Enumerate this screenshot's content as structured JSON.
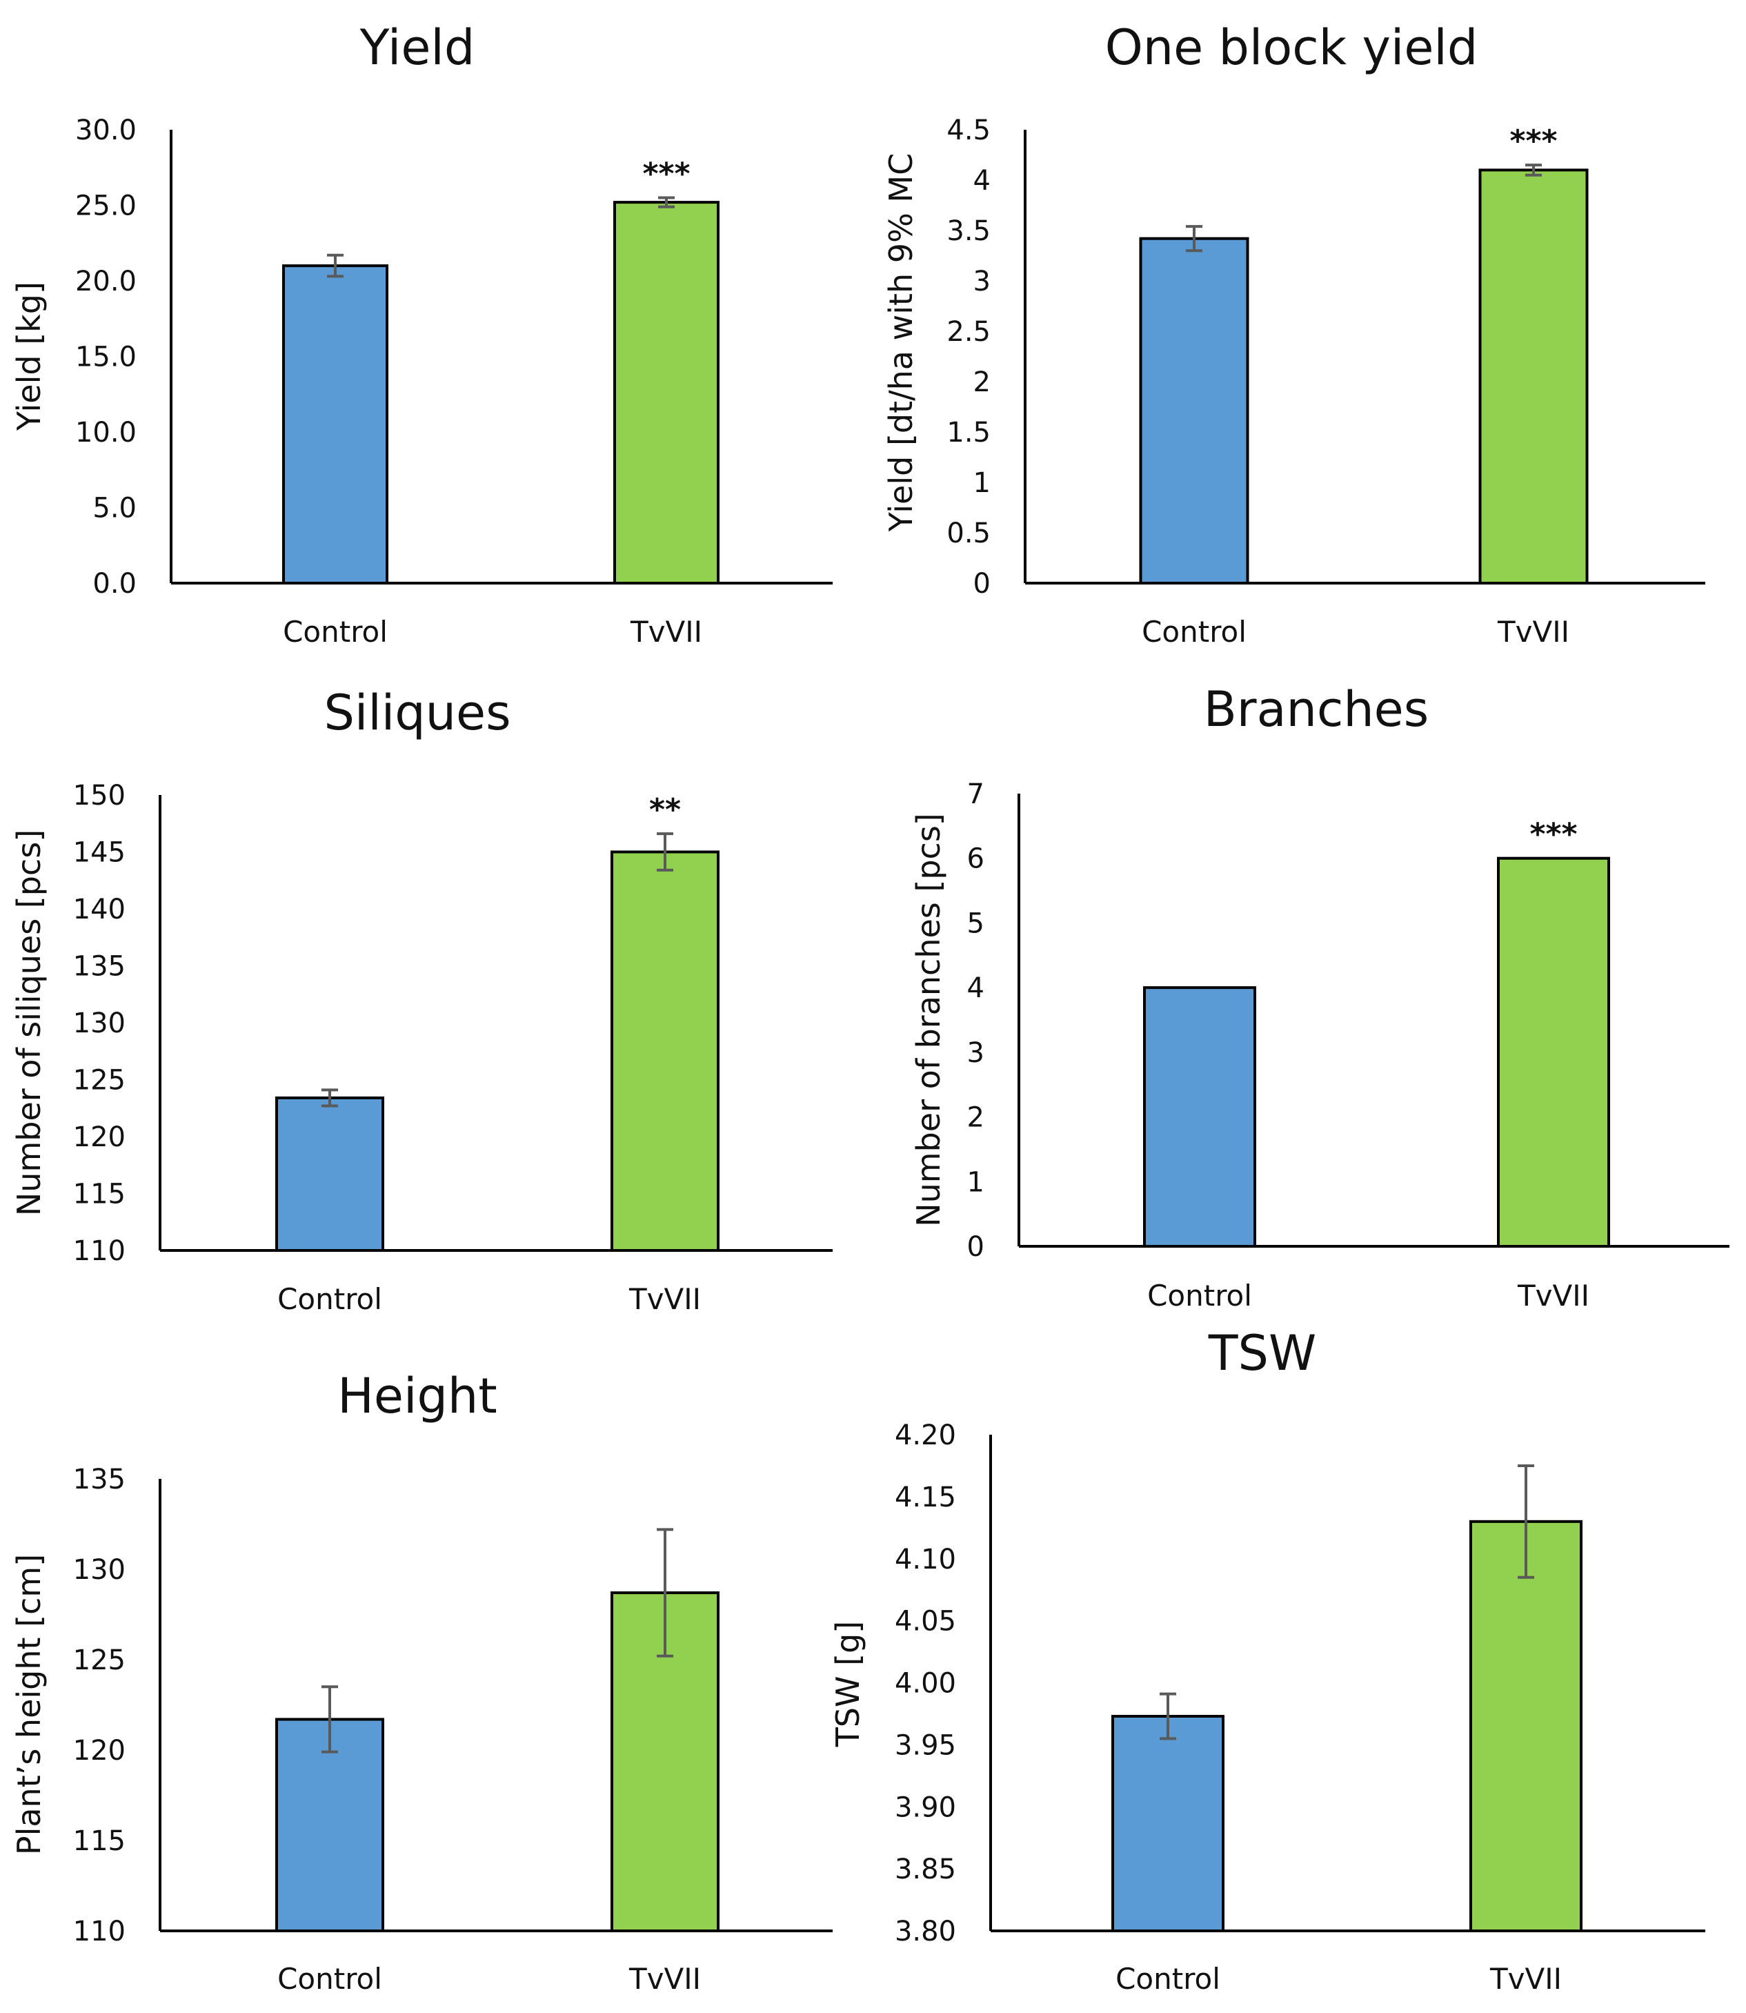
{
  "chart_data": [
    {
      "id": "yield",
      "type": "bar",
      "title": "Yield",
      "ylabel": "Yield [kg]",
      "xlabel": "",
      "categories": [
        "Control",
        "TvVII"
      ],
      "values": [
        21.0,
        25.2
      ],
      "errors": [
        0.7,
        0.3
      ],
      "significance": [
        "",
        "***"
      ],
      "colors": [
        "#5b9bd5",
        "#92d050"
      ],
      "ylim": [
        0,
        30
      ],
      "yticks": [
        "0.0",
        "5.0",
        "10.0",
        "15.0",
        "20.0",
        "25.0",
        "30.0"
      ]
    },
    {
      "id": "one-block-yield",
      "type": "bar",
      "title": "One block yield",
      "ylabel": "Yield [dt/ha with 9% MC",
      "xlabel": "",
      "categories": [
        "Control",
        "TvVII"
      ],
      "values": [
        3.42,
        4.1
      ],
      "errors": [
        0.12,
        0.05
      ],
      "significance": [
        "",
        "***"
      ],
      "colors": [
        "#5b9bd5",
        "#92d050"
      ],
      "ylim": [
        0,
        4.5
      ],
      "yticks": [
        "0",
        "0.5",
        "1",
        "1.5",
        "2",
        "2.5",
        "3",
        "3.5",
        "4",
        "4.5"
      ]
    },
    {
      "id": "siliques",
      "type": "bar",
      "title": "Siliques",
      "ylabel": "Number of siliques [pcs]",
      "xlabel": "",
      "categories": [
        "Control",
        "TvVII"
      ],
      "values": [
        123.4,
        145.0
      ],
      "errors": [
        0.7,
        1.6
      ],
      "significance": [
        "",
        "**"
      ],
      "colors": [
        "#5b9bd5",
        "#92d050"
      ],
      "ylim": [
        110,
        150
      ],
      "yticks": [
        "110",
        "115",
        "120",
        "125",
        "130",
        "135",
        "140",
        "145",
        "150"
      ]
    },
    {
      "id": "branches",
      "type": "bar",
      "title": "Branches",
      "ylabel": "Number of branches [pcs]",
      "xlabel": "",
      "categories": [
        "Control",
        "TvVII"
      ],
      "values": [
        4.0,
        6.0
      ],
      "errors": [
        0,
        0
      ],
      "significance": [
        "",
        "***"
      ],
      "colors": [
        "#5b9bd5",
        "#92d050"
      ],
      "ylim": [
        0,
        7
      ],
      "yticks": [
        "0",
        "1",
        "2",
        "3",
        "4",
        "5",
        "6",
        "7"
      ]
    },
    {
      "id": "height",
      "type": "bar",
      "title": "Height",
      "ylabel": "Plant’s height [cm]",
      "xlabel": "",
      "categories": [
        "Control",
        "TvVII"
      ],
      "values": [
        121.7,
        128.7
      ],
      "errors": [
        1.8,
        3.5
      ],
      "significance": [
        "",
        ""
      ],
      "colors": [
        "#5b9bd5",
        "#92d050"
      ],
      "ylim": [
        110,
        135
      ],
      "yticks": [
        "110",
        "115",
        "120",
        "125",
        "130",
        "135"
      ]
    },
    {
      "id": "tsw",
      "type": "bar",
      "title": "TSW",
      "ylabel": "TSW [g]",
      "xlabel": "",
      "categories": [
        "Control",
        "TvVII"
      ],
      "values": [
        3.973,
        4.13
      ],
      "errors": [
        0.018,
        0.045
      ],
      "significance": [
        "",
        ""
      ],
      "colors": [
        "#5b9bd5",
        "#92d050"
      ],
      "ylim": [
        3.8,
        4.2
      ],
      "yticks": [
        "3.80",
        "3.85",
        "3.90",
        "3.95",
        "4.00",
        "4.05",
        "4.10",
        "4.15",
        "4.20"
      ]
    }
  ]
}
